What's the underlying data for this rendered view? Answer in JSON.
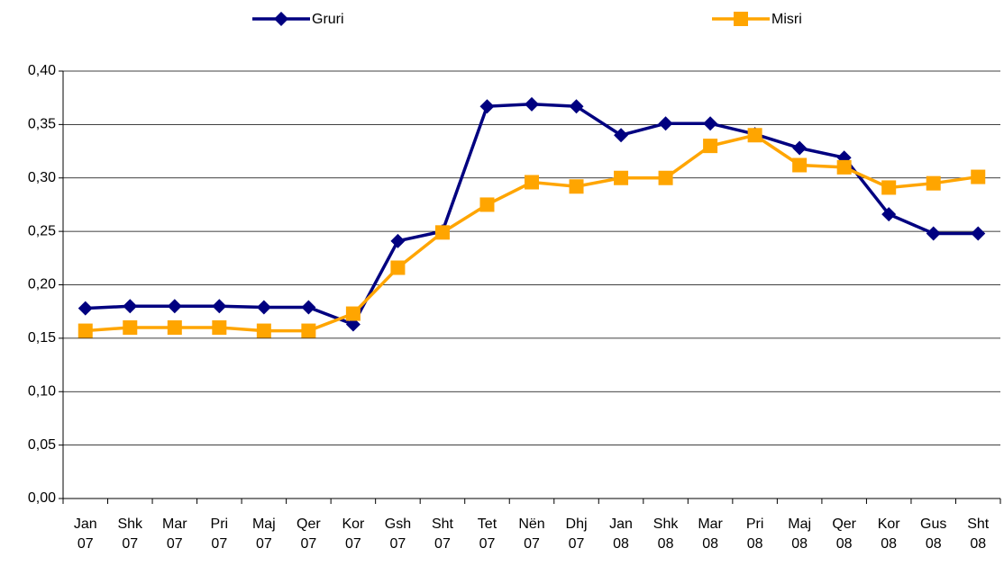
{
  "chart_data": {
    "type": "line",
    "categories": [
      [
        "Jan",
        "07"
      ],
      [
        "Shk",
        "07"
      ],
      [
        "Mar",
        "07"
      ],
      [
        "Pri",
        "07"
      ],
      [
        "Maj",
        "07"
      ],
      [
        "Qer",
        "07"
      ],
      [
        "Kor",
        "07"
      ],
      [
        "Gsh",
        "07"
      ],
      [
        "Sht",
        "07"
      ],
      [
        "Tet",
        "07"
      ],
      [
        "Nën",
        "07"
      ],
      [
        "Dhj",
        "07"
      ],
      [
        "Jan",
        "08"
      ],
      [
        "Shk",
        "08"
      ],
      [
        "Mar",
        "08"
      ],
      [
        "Pri",
        "08"
      ],
      [
        "Maj",
        "08"
      ],
      [
        "Qer",
        "08"
      ],
      [
        "Kor",
        "08"
      ],
      [
        "Gus",
        "08"
      ],
      [
        "Sht",
        "08"
      ]
    ],
    "series": [
      {
        "name": "Gruri",
        "color": "#000080",
        "marker": "diamond",
        "values": [
          0.178,
          0.18,
          0.18,
          0.18,
          0.179,
          0.179,
          0.163,
          0.241,
          0.25,
          0.367,
          0.369,
          0.367,
          0.34,
          0.351,
          0.351,
          0.341,
          0.328,
          0.319,
          0.266,
          0.248,
          0.248
        ]
      },
      {
        "name": "Misri",
        "color": "#ffa500",
        "marker": "square",
        "values": [
          0.157,
          0.16,
          0.16,
          0.16,
          0.157,
          0.157,
          0.173,
          0.216,
          0.249,
          0.275,
          0.296,
          0.292,
          0.3,
          0.3,
          0.33,
          0.34,
          0.312,
          0.31,
          0.291,
          0.295,
          0.301
        ]
      }
    ],
    "ylim": [
      0,
      0.4
    ],
    "yticks": [
      {
        "value": 0,
        "label": "0,00"
      },
      {
        "value": 0.05,
        "label": "0,05"
      },
      {
        "value": 0.1,
        "label": "0,10"
      },
      {
        "value": 0.15,
        "label": "0,15"
      },
      {
        "value": 0.2,
        "label": "0,20"
      },
      {
        "value": 0.25,
        "label": "0,25"
      },
      {
        "value": 0.3,
        "label": "0,30"
      },
      {
        "value": 0.35,
        "label": "0,35"
      },
      {
        "value": 0.4,
        "label": "0,40"
      }
    ],
    "grid": true,
    "legend": "top"
  }
}
